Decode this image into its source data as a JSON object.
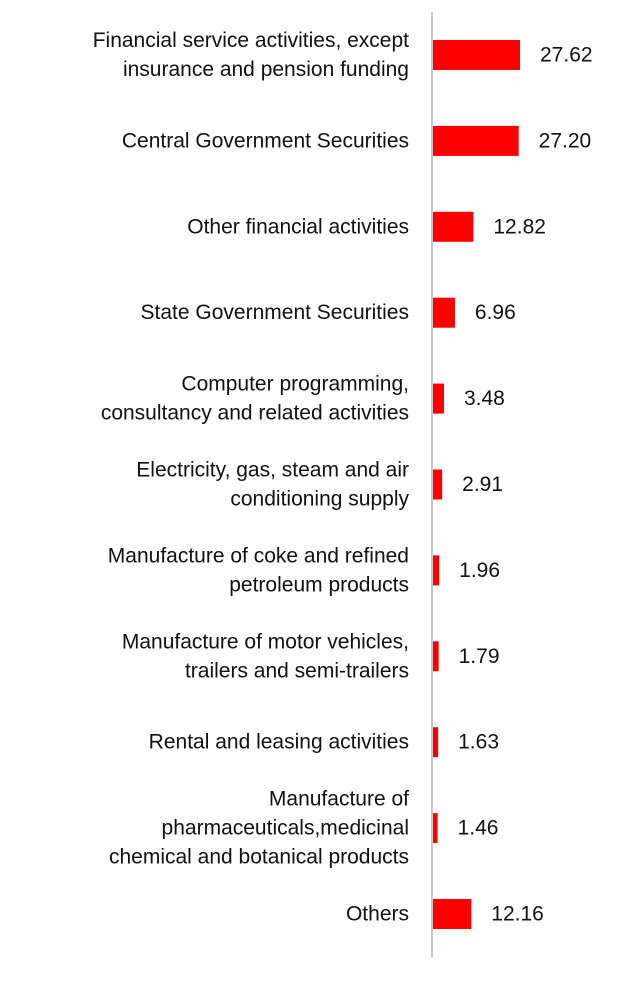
{
  "chart_data": {
    "type": "bar",
    "orientation": "horizontal",
    "categories": [
      [
        "Financial service activities, except",
        "insurance and pension funding"
      ],
      [
        "Central Government Securities"
      ],
      [
        "Other financial activities"
      ],
      [
        "State Government Securities"
      ],
      [
        "Computer programming,",
        "consultancy and related activities"
      ],
      [
        "Electricity, gas, steam and air",
        "conditioning supply"
      ],
      [
        "Manufacture of coke and refined",
        "petroleum products"
      ],
      [
        "Manufacture of motor vehicles,",
        "trailers and semi-trailers"
      ],
      [
        "Rental and leasing activities"
      ],
      [
        "Manufacture of",
        "pharmaceuticals,medicinal",
        "chemical and botanical products"
      ],
      [
        "Others"
      ]
    ],
    "values": [
      27.62,
      27.2,
      12.82,
      6.96,
      3.48,
      2.91,
      1.96,
      1.79,
      1.63,
      1.46,
      12.16
    ],
    "value_labels": [
      "27.62",
      "27.20",
      "12.82",
      "6.96",
      "3.48",
      "2.91",
      "1.96",
      "1.79",
      "1.63",
      "1.46",
      "12.16"
    ],
    "bar_color": "#ff0000",
    "axis_color": "#c8c8c8",
    "text_color": "#111111",
    "xlim": [
      0,
      30
    ],
    "grid": false,
    "legend": "none"
  }
}
